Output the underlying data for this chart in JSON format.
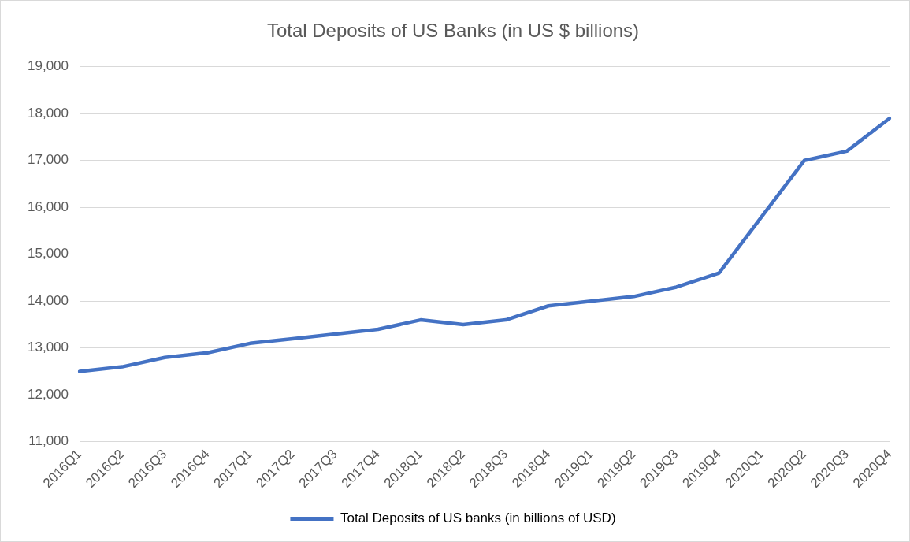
{
  "chart_data": {
    "type": "line",
    "title": "Total Deposits of US Banks (in US $ billions)",
    "categories": [
      "2016Q1",
      "2016Q2",
      "2016Q3",
      "2016Q4",
      "2017Q1",
      "2017Q2",
      "2017Q3",
      "2017Q4",
      "2018Q1",
      "2018Q2",
      "2018Q3",
      "2018Q4",
      "2019Q1",
      "2019Q2",
      "2019Q3",
      "2019Q4",
      "2020Q1",
      "2020Q2",
      "2020Q3",
      "2020Q4"
    ],
    "series": [
      {
        "name": "Total Deposits of US banks (in billions of USD)",
        "color": "#4472c4",
        "values": [
          12500,
          12600,
          12800,
          12900,
          13100,
          13200,
          13300,
          13400,
          13600,
          13500,
          13600,
          13900,
          14000,
          14100,
          14300,
          14600,
          15800,
          17000,
          17200,
          17900
        ]
      }
    ],
    "ylim": [
      11000,
      19000
    ],
    "yticks": [
      {
        "value": 11000,
        "label": "11,000"
      },
      {
        "value": 12000,
        "label": "12,000"
      },
      {
        "value": 13000,
        "label": "13,000"
      },
      {
        "value": 14000,
        "label": "14,000"
      },
      {
        "value": 15000,
        "label": "15,000"
      },
      {
        "value": 16000,
        "label": "16,000"
      },
      {
        "value": 17000,
        "label": "17,000"
      },
      {
        "value": 18000,
        "label": "18,000"
      },
      {
        "value": 19000,
        "label": "19,000"
      }
    ],
    "grid": "y",
    "legend": "bottom",
    "marker": "none",
    "line_style": "solid"
  }
}
